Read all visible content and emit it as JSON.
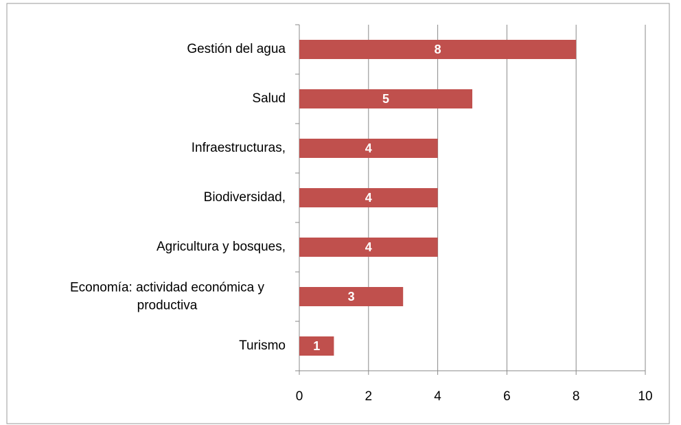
{
  "chart_data": {
    "type": "bar",
    "orientation": "horizontal",
    "categories": [
      "Gestión del agua",
      "Salud",
      "Infraestructuras,",
      "Biodiversidad,",
      "Agricultura y bosques,",
      "Economía: actividad económica y productiva",
      "Turismo"
    ],
    "values": [
      8,
      5,
      4,
      4,
      4,
      3,
      1
    ],
    "color": "#c0504d",
    "xlim": [
      0,
      10
    ],
    "xticks": [
      0,
      2,
      4,
      6,
      8,
      10
    ],
    "grid": true
  }
}
